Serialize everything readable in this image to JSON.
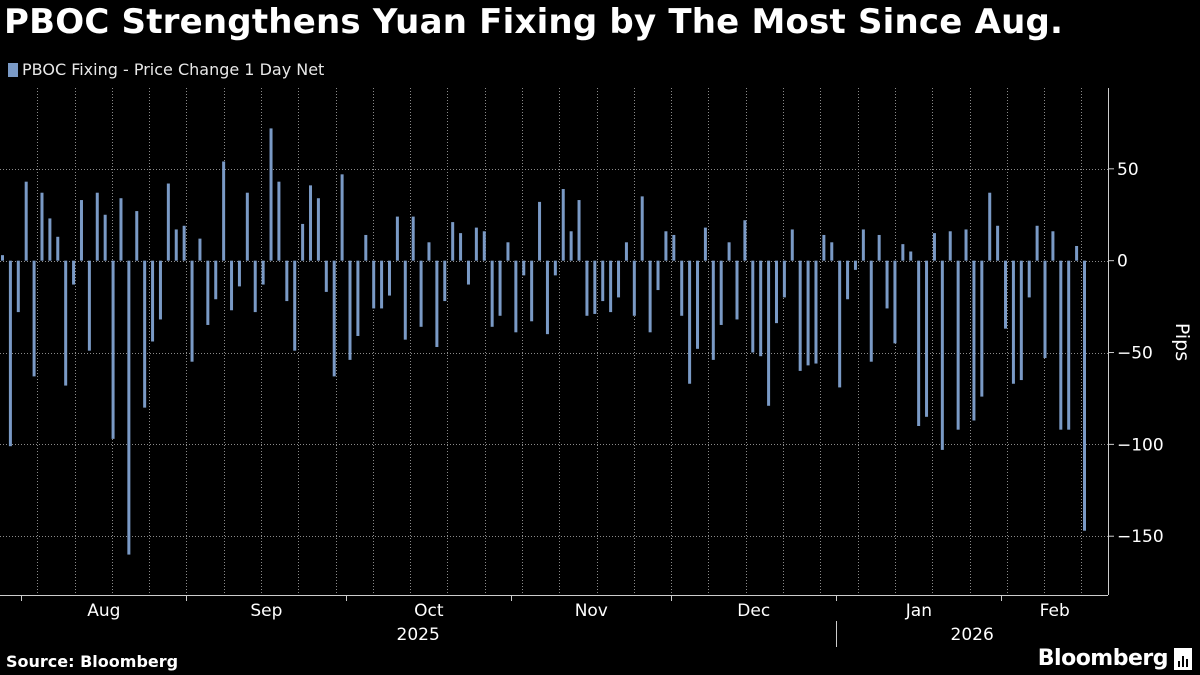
{
  "title": "PBOC Strengthens Yuan Fixing by The Most Since Aug.",
  "source": "Source: Bloomberg",
  "brand": "Bloomberg",
  "colors": {
    "background": "#000000",
    "bar": "#7a9ac6",
    "grid": "#8a8a8a",
    "text": "#ffffff"
  },
  "chart_data": {
    "type": "bar",
    "series": [
      {
        "name": "PBOC Fixing - Price Change 1 Day Net",
        "values": [
          3,
          -101,
          -28,
          43,
          -63,
          37,
          23,
          13,
          -68,
          -13,
          33,
          -49,
          37,
          25,
          -97,
          34,
          -160,
          27,
          -80,
          -44,
          -32,
          42,
          17,
          19,
          -55,
          12,
          -35,
          -21,
          54,
          -27,
          -14,
          37,
          -28,
          -13,
          72,
          43,
          -22,
          -49,
          20,
          41,
          34,
          -17,
          -63,
          47,
          -54,
          -41,
          14,
          -26,
          -26,
          -19,
          24,
          -43,
          24,
          -36,
          10,
          -47,
          -22,
          21,
          15,
          -13,
          18,
          16,
          -36,
          -30,
          10,
          -39,
          -8,
          -33,
          32,
          -40,
          -8,
          39,
          16,
          33,
          -30,
          -29,
          -22,
          -28,
          -20,
          10,
          -30,
          35,
          -39,
          -16,
          16,
          14,
          -30,
          -67,
          -48,
          18,
          -54,
          -35,
          10,
          -32,
          22,
          -50,
          -52,
          -79,
          -34,
          -20,
          17,
          -60,
          -57,
          -56,
          14,
          10,
          -69,
          -21,
          -5,
          17,
          -55,
          14,
          -26,
          -45,
          9,
          5,
          -90,
          -85,
          15,
          -103,
          16,
          -92,
          17,
          -87,
          -74,
          37,
          19,
          -37,
          -67,
          -65,
          -20,
          19,
          -53,
          16,
          -92,
          -92,
          8,
          -147
        ]
      }
    ],
    "ylabel": "Pips",
    "ylim": [
      -182,
      94
    ],
    "yticks": [
      50,
      0,
      -50,
      -100,
      -150
    ],
    "x_start": "2025-07-28",
    "x_end": "2026-02-21",
    "month_labels": [
      "Aug",
      "Sep",
      "Oct",
      "Nov",
      "Dec",
      "Jan",
      "Feb"
    ],
    "month_starts": [
      "2025-08-01",
      "2025-09-01",
      "2025-10-01",
      "2025-11-01",
      "2025-12-01",
      "2026-01-01",
      "2026-02-01"
    ],
    "week_starts": [
      "2025-08-04",
      "2025-08-11",
      "2025-08-18",
      "2025-08-25",
      "2025-09-01",
      "2025-09-08",
      "2025-09-15",
      "2025-09-22",
      "2025-09-29",
      "2025-10-06",
      "2025-10-13",
      "2025-10-20",
      "2025-10-27",
      "2025-11-03",
      "2025-11-10",
      "2025-11-17",
      "2025-11-24",
      "2025-12-01",
      "2025-12-08",
      "2025-12-15",
      "2025-12-22",
      "2025-12-29",
      "2026-01-05",
      "2026-01-12",
      "2026-01-19",
      "2026-01-26",
      "2026-02-02",
      "2026-02-09",
      "2026-02-16"
    ],
    "year_labels": [
      "2025",
      "2026"
    ],
    "grid": true,
    "legend_position": "top-left"
  }
}
